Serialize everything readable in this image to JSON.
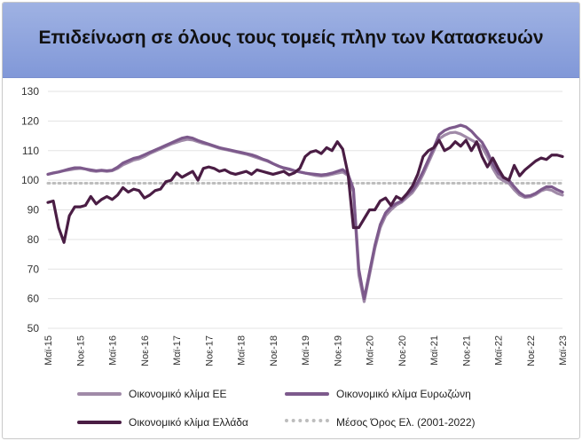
{
  "chart_data": {
    "type": "line",
    "title": "Επιδείνωση σε όλους τους τομείς πλην των Κατασκευών",
    "ylim": [
      50,
      130
    ],
    "yticks": [
      50,
      60,
      70,
      80,
      90,
      100,
      110,
      120,
      130
    ],
    "grid": true,
    "legend_position": "bottom",
    "x": [
      "Μαϊ-15",
      "Ιουν-15",
      "Ιουλ-15",
      "Αυγ-15",
      "Σεπ-15",
      "Οκτ-15",
      "Νοε-15",
      "Δεκ-15",
      "Ιαν-16",
      "Φεβ-16",
      "Μαρ-16",
      "Απρ-16",
      "Μαϊ-16",
      "Ιουν-16",
      "Ιουλ-16",
      "Αυγ-16",
      "Σεπ-16",
      "Οκτ-16",
      "Νοε-16",
      "Δεκ-16",
      "Ιαν-17",
      "Φεβ-17",
      "Μαρ-17",
      "Απρ-17",
      "Μαϊ-17",
      "Ιουν-17",
      "Ιουλ-17",
      "Αυγ-17",
      "Σεπ-17",
      "Οκτ-17",
      "Νοε-17",
      "Δεκ-17",
      "Ιαν-18",
      "Φεβ-18",
      "Μαρ-18",
      "Απρ-18",
      "Μαϊ-18",
      "Ιουν-18",
      "Ιουλ-18",
      "Αυγ-18",
      "Σεπ-18",
      "Οκτ-18",
      "Νοε-18",
      "Δεκ-18",
      "Ιαν-19",
      "Φεβ-19",
      "Μαρ-19",
      "Απρ-19",
      "Μαϊ-19",
      "Ιουν-19",
      "Ιουλ-19",
      "Αυγ-19",
      "Σεπ-19",
      "Οκτ-19",
      "Νοε-19",
      "Δεκ-19",
      "Ιαν-20",
      "Φεβ-20",
      "Μαρ-20",
      "Απρ-20",
      "Μαϊ-20",
      "Ιουν-20",
      "Ιουλ-20",
      "Αυγ-20",
      "Σεπ-20",
      "Οκτ-20",
      "Νοε-20",
      "Δεκ-20",
      "Ιαν-21",
      "Φεβ-21",
      "Μαρ-21",
      "Απρ-21",
      "Μαϊ-21",
      "Ιουν-21",
      "Ιουλ-21",
      "Αυγ-21",
      "Σεπ-21",
      "Οκτ-21",
      "Νοε-21",
      "Δεκ-21",
      "Ιαν-22",
      "Φεβ-22",
      "Μαρ-22",
      "Απρ-22",
      "Μαϊ-22",
      "Ιουν-22",
      "Ιουλ-22",
      "Αυγ-22",
      "Σεπ-22",
      "Οκτ-22",
      "Νοε-22",
      "Δεκ-22",
      "Ιαν-23",
      "Φεβ-23",
      "Μαρ-23",
      "Απρ-23",
      "Μαϊ-23"
    ],
    "xtick_labels": [
      {
        "index": 0,
        "label": "Μαϊ-15"
      },
      {
        "index": 6,
        "label": "Νοε-15"
      },
      {
        "index": 12,
        "label": "Μαϊ-16"
      },
      {
        "index": 18,
        "label": "Νοε-16"
      },
      {
        "index": 24,
        "label": "Μαϊ-17"
      },
      {
        "index": 30,
        "label": "Νοε-17"
      },
      {
        "index": 36,
        "label": "Μαϊ-18"
      },
      {
        "index": 42,
        "label": "Νοε-18"
      },
      {
        "index": 48,
        "label": "Μαϊ-19"
      },
      {
        "index": 54,
        "label": "Νοε-19"
      },
      {
        "index": 60,
        "label": "Μαϊ-20"
      },
      {
        "index": 66,
        "label": "Νοε-20"
      },
      {
        "index": 72,
        "label": "Μαϊ-21"
      },
      {
        "index": 78,
        "label": "Νοε-21"
      },
      {
        "index": 84,
        "label": "Μαϊ-22"
      },
      {
        "index": 90,
        "label": "Νοε-22"
      },
      {
        "index": 96,
        "label": "Μαϊ-23"
      }
    ],
    "series": [
      {
        "name": "Οικονομικό κλίμα ΕΕ",
        "color": "#a08aa8",
        "values": [
          102,
          102.5,
          102.8,
          103.2,
          103.5,
          103.8,
          104,
          103.8,
          103.2,
          103,
          103.2,
          103,
          103.2,
          104,
          105.2,
          106,
          106.8,
          107.2,
          108,
          109,
          109.8,
          110.6,
          111.4,
          112.2,
          112.8,
          113.4,
          113.8,
          113.6,
          113,
          112.4,
          112,
          111.4,
          110.8,
          110.4,
          110,
          109.6,
          109.2,
          108.8,
          108.2,
          107.6,
          107,
          106.4,
          105.6,
          104.8,
          104,
          103.6,
          103.2,
          102.8,
          102.4,
          102,
          101.6,
          101.4,
          101.6,
          102,
          102.4,
          102.8,
          101.6,
          96,
          68,
          59,
          68,
          77,
          84,
          88,
          90,
          91.6,
          92.6,
          94.2,
          95.8,
          98.4,
          102,
          106,
          110,
          114,
          115.2,
          116,
          116.2,
          115.6,
          114.6,
          113.6,
          112.6,
          111.2,
          108,
          104,
          101,
          99.8,
          99,
          96.8,
          95,
          94.2,
          94.4,
          95.2,
          96.4,
          97,
          96.6,
          95.6,
          95
        ]
      },
      {
        "name": "Οικονομικό κλίμα Ευρωζώνη",
        "color": "#7d5a8c",
        "values": [
          102,
          102.4,
          102.8,
          103.3,
          103.8,
          104.2,
          104.2,
          103.8,
          103.5,
          103.2,
          103.4,
          103.2,
          103.4,
          104.4,
          105.8,
          106.6,
          107.4,
          107.8,
          108.6,
          109.4,
          110.2,
          111,
          111.8,
          112.6,
          113.4,
          114.2,
          114.6,
          114.2,
          113.4,
          112.8,
          112.2,
          111.6,
          111,
          110.6,
          110.2,
          109.8,
          109.4,
          109,
          108.6,
          108,
          107.2,
          106.6,
          105.6,
          104.8,
          104.2,
          103.8,
          103.2,
          102.8,
          102.4,
          102.2,
          102,
          101.8,
          102,
          102.4,
          103,
          103.6,
          102,
          97,
          70,
          60,
          69,
          78,
          85,
          89,
          91,
          92.2,
          93,
          95,
          96.6,
          99.4,
          103,
          107,
          111,
          115.4,
          116.8,
          117.6,
          118,
          118.6,
          118,
          116.6,
          114.6,
          112.8,
          109.6,
          105.4,
          102.4,
          100.8,
          100,
          97.8,
          95.8,
          94.6,
          94.8,
          95.6,
          96.8,
          97.8,
          97.8,
          96.8,
          96
        ]
      },
      {
        "name": "Οικονομικό κλίμα Ελλάδα",
        "color": "#4a1d44",
        "values": [
          92.5,
          93,
          84,
          79,
          88,
          91,
          91,
          91.5,
          94.5,
          92,
          93.5,
          94.5,
          93.5,
          95,
          97.5,
          96,
          97,
          96.5,
          94,
          95,
          96.5,
          97,
          99.5,
          100,
          102.5,
          101,
          102,
          103,
          100,
          104,
          104.5,
          104,
          103,
          103.5,
          102.5,
          102,
          102.5,
          103,
          102,
          103.5,
          103,
          102.5,
          102,
          102.5,
          103,
          101.8,
          102.5,
          104,
          108,
          109.5,
          110,
          109,
          111,
          110,
          113,
          110.5,
          102,
          84,
          84,
          87,
          90,
          90,
          93,
          94,
          91.5,
          94.5,
          93.5,
          95.5,
          98,
          102,
          108,
          110,
          111,
          113.5,
          110,
          111,
          113,
          111.5,
          113.5,
          110,
          113,
          108,
          104.5,
          107.5,
          104,
          101,
          100,
          105,
          101.5,
          103.5,
          105,
          106.5,
          107.5,
          107,
          108.5,
          108.5,
          108
        ]
      },
      {
        "name": "Μέσος Όρος Ελ. (2001-2022)",
        "color": "#bdbdbd",
        "style": "dotted",
        "values": [
          99,
          99,
          99,
          99,
          99,
          99,
          99,
          99,
          99,
          99,
          99,
          99,
          99,
          99,
          99,
          99,
          99,
          99,
          99,
          99,
          99,
          99,
          99,
          99,
          99,
          99,
          99,
          99,
          99,
          99,
          99,
          99,
          99,
          99,
          99,
          99,
          99,
          99,
          99,
          99,
          99,
          99,
          99,
          99,
          99,
          99,
          99,
          99,
          99,
          99,
          99,
          99,
          99,
          99,
          99,
          99,
          99,
          99,
          99,
          99,
          99,
          99,
          99,
          99,
          99,
          99,
          99,
          99,
          99,
          99,
          99,
          99,
          99,
          99,
          99,
          99,
          99,
          99,
          99,
          99,
          99,
          99,
          99,
          99,
          99,
          99,
          99,
          99,
          99,
          99,
          99,
          99,
          99,
          99,
          99,
          99,
          99
        ]
      }
    ]
  }
}
